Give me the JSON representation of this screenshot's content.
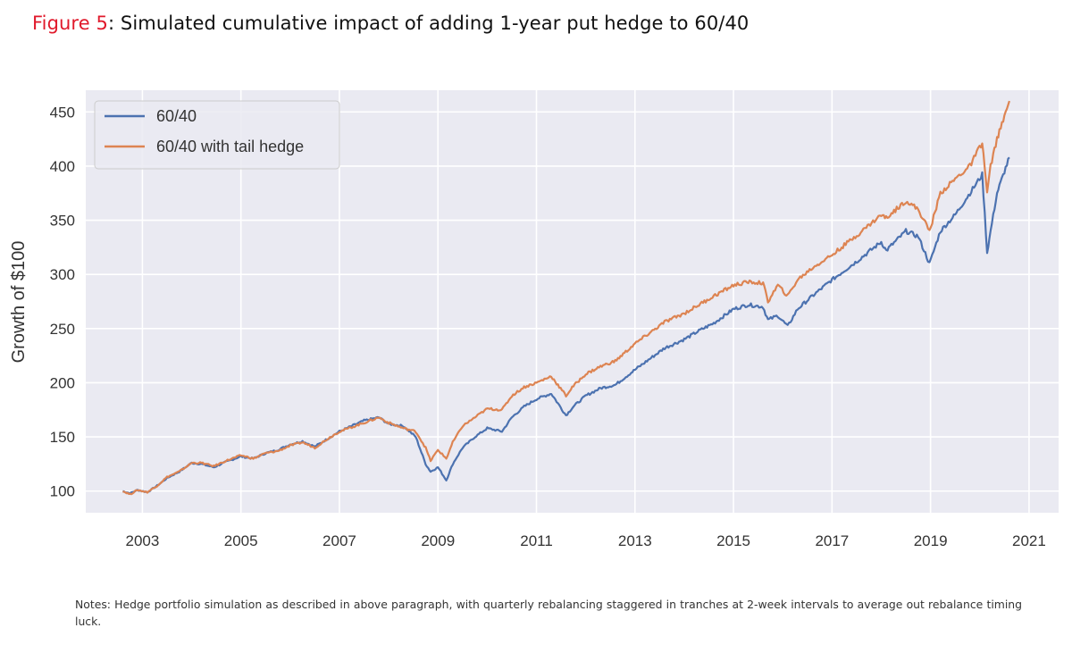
{
  "figure": {
    "label": "Figure 5",
    "separator": ":",
    "title": " Simulated cumulative impact of adding 1-year put hedge to 60/40",
    "notes": "Notes: Hedge portfolio simulation as described in above paragraph, with quarterly rebalancing staggered in tranches at 2-week intervals to average out rebalance timing luck."
  },
  "colors": {
    "plot_background": "#eaeaf2",
    "grid": "#ffffff",
    "series_6040": "#4c72b0",
    "series_hedge": "#dd8452",
    "title_label": "#e0192b"
  },
  "chart_data": {
    "type": "line",
    "title": "Simulated cumulative impact of adding 1-year put hedge to 60/40",
    "xlabel": "",
    "ylabel": "Growth of $100",
    "xlim": [
      2001.85,
      2021.6
    ],
    "ylim": [
      80,
      470
    ],
    "xticks": [
      2003,
      2005,
      2007,
      2009,
      2011,
      2013,
      2015,
      2017,
      2019,
      2021
    ],
    "xtick_labels": [
      "2003",
      "2005",
      "2007",
      "2009",
      "2011",
      "2013",
      "2015",
      "2017",
      "2019",
      "2021"
    ],
    "yticks": [
      100,
      150,
      200,
      250,
      300,
      350,
      400,
      450
    ],
    "ytick_labels": [
      "100",
      "150",
      "200",
      "250",
      "300",
      "350",
      "400",
      "450"
    ],
    "grid": true,
    "legend": {
      "position": "top-left",
      "entries": [
        "60/40",
        "60/40 with tail hedge"
      ]
    },
    "x": [
      2002.6,
      2002.75,
      2002.9,
      2003.1,
      2003.3,
      2003.5,
      2003.75,
      2004.0,
      2004.2,
      2004.45,
      2004.7,
      2005.0,
      2005.25,
      2005.5,
      2005.75,
      2006.0,
      2006.25,
      2006.5,
      2006.75,
      2007.0,
      2007.25,
      2007.5,
      2007.8,
      2008.0,
      2008.3,
      2008.55,
      2008.75,
      2008.85,
      2009.0,
      2009.17,
      2009.3,
      2009.5,
      2009.75,
      2010.0,
      2010.3,
      2010.5,
      2010.75,
      2011.0,
      2011.3,
      2011.6,
      2011.75,
      2012.0,
      2012.3,
      2012.6,
      2013.0,
      2013.3,
      2013.6,
      2014.0,
      2014.3,
      2014.6,
      2015.0,
      2015.3,
      2015.6,
      2015.7,
      2015.9,
      2016.1,
      2016.3,
      2016.6,
      2017.0,
      2017.5,
      2018.0,
      2018.1,
      2018.5,
      2018.75,
      2018.98,
      2019.2,
      2019.5,
      2019.8,
      2020.05,
      2020.15,
      2020.22,
      2020.35,
      2020.5,
      2020.6
    ],
    "series": [
      {
        "name": "60/40",
        "color": "#4c72b0",
        "values": [
          100,
          98,
          101,
          99,
          105,
          112,
          118,
          126,
          125,
          122,
          127,
          132,
          130,
          135,
          138,
          143,
          146,
          141,
          148,
          155,
          160,
          165,
          168,
          162,
          160,
          150,
          125,
          118,
          122,
          110,
          125,
          140,
          150,
          158,
          155,
          168,
          178,
          185,
          190,
          170,
          178,
          188,
          195,
          198,
          212,
          222,
          232,
          240,
          248,
          255,
          268,
          272,
          270,
          258,
          262,
          252,
          268,
          280,
          295,
          312,
          330,
          322,
          340,
          335,
          310,
          340,
          355,
          375,
          392,
          320,
          340,
          375,
          395,
          408
        ]
      },
      {
        "name": "60/40 with tail hedge",
        "color": "#dd8452",
        "values": [
          100,
          97,
          101,
          99,
          105,
          113,
          118,
          126,
          126,
          123,
          128,
          133,
          130,
          135,
          137,
          142,
          145,
          140,
          148,
          155,
          159,
          163,
          168,
          163,
          158,
          155,
          140,
          128,
          138,
          130,
          145,
          160,
          168,
          176,
          175,
          188,
          196,
          200,
          206,
          188,
          197,
          208,
          215,
          220,
          236,
          246,
          256,
          264,
          272,
          280,
          290,
          293,
          292,
          275,
          290,
          280,
          295,
          306,
          318,
          336,
          355,
          352,
          368,
          360,
          340,
          375,
          388,
          400,
          422,
          375,
          400,
          425,
          445,
          460
        ]
      }
    ]
  }
}
